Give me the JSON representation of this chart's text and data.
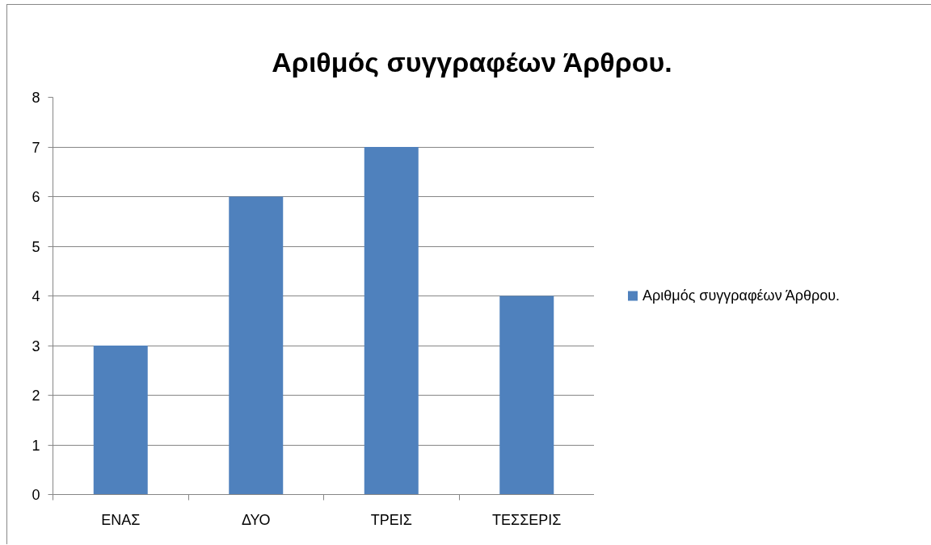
{
  "chart_data": {
    "type": "bar",
    "title": "Αριθμός συγγραφέων Άρθρου.",
    "categories": [
      "ΕΝΑΣ",
      "ΔΥΟ",
      "ΤΡΕΙΣ",
      "ΤΕΣΣΕΡΙΣ"
    ],
    "series": [
      {
        "name": "Αριθμός συγγραφέων Άρθρου.",
        "color": "#4f81bd",
        "values": [
          3,
          6,
          7,
          4
        ]
      }
    ],
    "ylim": [
      0,
      8
    ],
    "yticks": [
      0,
      1,
      2,
      3,
      4,
      5,
      6,
      7,
      8
    ],
    "grid": "y",
    "legend": "right"
  }
}
